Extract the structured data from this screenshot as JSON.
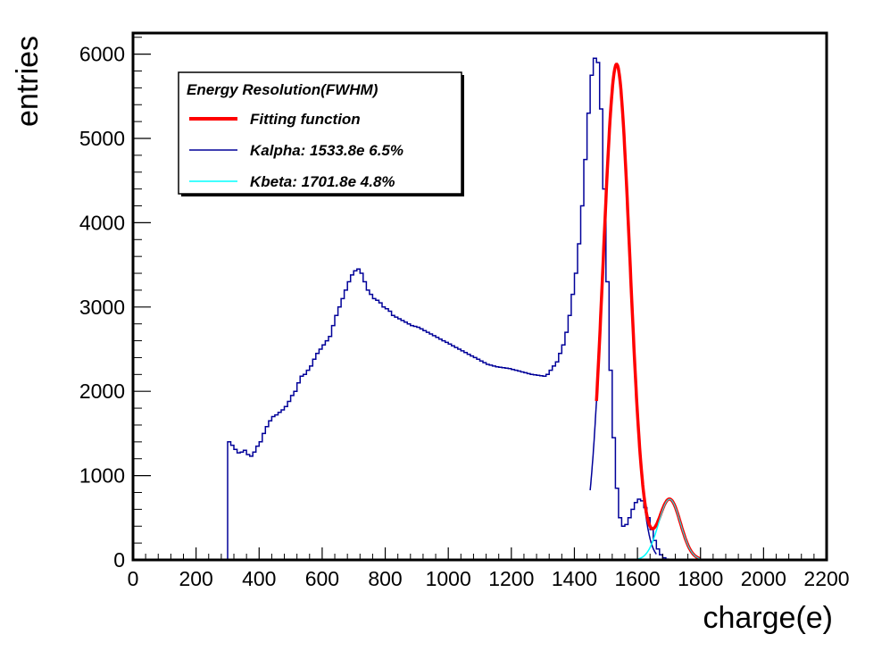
{
  "chart_data": {
    "type": "histogram",
    "title": "",
    "xlabel": "charge(e)",
    "ylabel": "entries",
    "xlim": [
      0,
      2200
    ],
    "ylim": [
      0,
      6250
    ],
    "xticks": [
      0,
      200,
      400,
      600,
      800,
      1000,
      1200,
      1400,
      1600,
      1800,
      2000,
      2200
    ],
    "xtick_labels": [
      "0",
      "200",
      "400",
      "600",
      "800",
      "1000",
      "1200",
      "1400",
      "1600",
      "1800",
      "2000",
      "2200"
    ],
    "yticks": [
      0,
      1000,
      2000,
      3000,
      4000,
      5000,
      6000
    ],
    "ytick_labels": [
      "0",
      "1000",
      "2000",
      "3000",
      "4000",
      "5000",
      "6000"
    ],
    "grid": false,
    "legend": {
      "placement": "top-left",
      "header": "Energy Resolution(FWHM)",
      "entries": [
        {
          "label": "Fitting function",
          "color": "#ff0000"
        },
        {
          "label": "Kalpha: 1533.8e  6.5%",
          "color": "#000099"
        },
        {
          "label": "Kbeta: 1701.8e  4.8%",
          "color": "#00ffff"
        }
      ]
    },
    "histogram": {
      "color": "#000099",
      "bin_width": 10,
      "bin_edges_start": 300,
      "counts": [
        1400,
        1360,
        1310,
        1270,
        1280,
        1300,
        1250,
        1230,
        1280,
        1350,
        1400,
        1500,
        1580,
        1650,
        1700,
        1720,
        1750,
        1780,
        1820,
        1880,
        1950,
        2000,
        2100,
        2180,
        2200,
        2250,
        2300,
        2380,
        2450,
        2500,
        2550,
        2600,
        2650,
        2780,
        2900,
        3000,
        3100,
        3200,
        3300,
        3380,
        3430,
        3450,
        3400,
        3300,
        3200,
        3150,
        3100,
        3080,
        3050,
        3000,
        2980,
        2950,
        2900,
        2880,
        2860,
        2840,
        2820,
        2800,
        2780,
        2770,
        2760,
        2740,
        2720,
        2700,
        2680,
        2660,
        2640,
        2620,
        2600,
        2580,
        2560,
        2540,
        2520,
        2500,
        2480,
        2460,
        2440,
        2420,
        2400,
        2380,
        2360,
        2340,
        2320,
        2310,
        2300,
        2290,
        2285,
        2280,
        2275,
        2270,
        2260,
        2250,
        2240,
        2230,
        2220,
        2210,
        2200,
        2195,
        2190,
        2185,
        2180,
        2200,
        2250,
        2300,
        2350,
        2450,
        2550,
        2700,
        2900,
        3150,
        3400,
        3750,
        4200,
        4750,
        5300,
        5750,
        5950,
        5900,
        5350,
        4400,
        3300,
        2250,
        1450,
        850,
        500,
        400,
        420,
        500,
        600,
        680,
        720,
        700,
        620,
        500,
        360,
        230,
        130,
        60,
        25,
        10
      ]
    },
    "fits": [
      {
        "name": "Fitting function",
        "color": "#ff0000",
        "x_range": [
          1470,
          1800
        ],
        "components": [
          [
            5880,
            1533.8,
            42.3
          ],
          [
            720,
            1701.8,
            34.7
          ]
        ]
      },
      {
        "name": "Kalpha",
        "color": "#000099",
        "x_range": [
          1450,
          1660
        ],
        "components": [
          [
            5880,
            1533.8,
            42.3
          ]
        ]
      },
      {
        "name": "Kbeta",
        "color": "#00ffff",
        "x_range": [
          1600,
          1800
        ],
        "components": [
          [
            720,
            1701.8,
            34.7
          ]
        ]
      }
    ]
  }
}
